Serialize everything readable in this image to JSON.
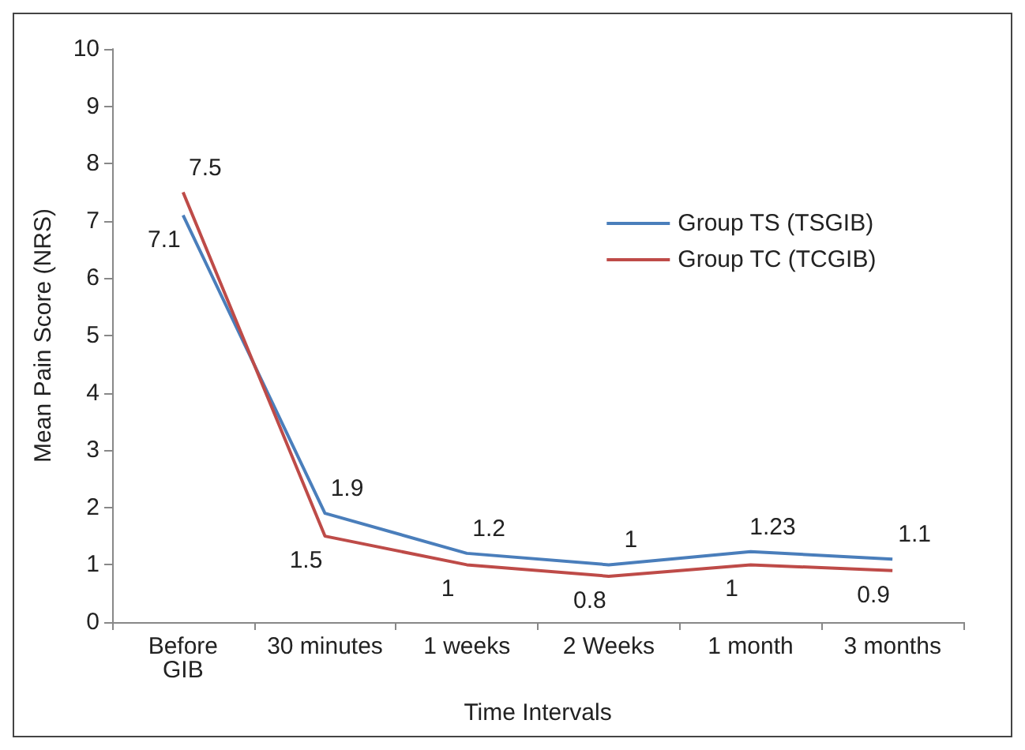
{
  "chart_data": {
    "type": "line",
    "xlabel": "Time Intervals",
    "ylabel": "Mean Pain Score (NRS)",
    "categories": [
      "Before\nGIB",
      "30 minutes",
      "1 weeks",
      "2 Weeks",
      "1 month",
      "3 months"
    ],
    "series": [
      {
        "name": "Group TS (TSGIB)",
        "color": "#4a7ebb",
        "values": [
          7.1,
          1.9,
          1.2,
          1,
          1.23,
          1.1
        ]
      },
      {
        "name": "Group TC (TCGIB)",
        "color": "#be4b48",
        "values": [
          7.5,
          1.5,
          1,
          0.8,
          1,
          0.9
        ]
      }
    ],
    "ylim": [
      0,
      10
    ],
    "yticks": [
      0,
      1,
      2,
      3,
      4,
      5,
      6,
      7,
      8,
      9,
      10
    ],
    "grid": false,
    "legend": "right",
    "data_labels": true,
    "marker": "none"
  }
}
